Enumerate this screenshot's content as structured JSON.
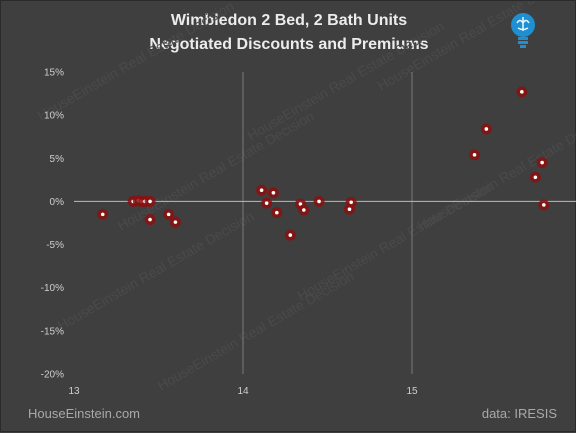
{
  "title_line1": "Wimbledon 2 Bed, 2 Bath Units",
  "title_line2": "Negotiated Discounts and Premiums",
  "footer_left": "HouseEinstein.com",
  "footer_right": "data:  IRESIS",
  "logo_icon": "lightbulb-brain-icon",
  "watermark_text": "HouseEinstein Real Estate Decision",
  "colors": {
    "background": "#3f3f3f",
    "point": "#8b1010",
    "point_center": "#ffffff",
    "gridline": "#7a7a7a",
    "zero_line": "#bdbdbd",
    "logo": "#1e8fd0"
  },
  "chart_data": {
    "type": "scatter",
    "title": "Wimbledon 2 Bed, 2 Bath Units Negotiated Discounts and Premiums",
    "xlim": [
      13,
      16
    ],
    "ylim": [
      -20,
      15
    ],
    "x_ticks": [
      13,
      14,
      15
    ],
    "y_ticks": [
      -20,
      -15,
      -10,
      -5,
      0,
      5,
      10,
      15
    ],
    "x_tick_labels": [
      "13",
      "14",
      "15"
    ],
    "y_tick_labels": [
      "-20%",
      "-15%",
      "-10%",
      "-5%",
      "0%",
      "5%",
      "10%",
      "15%"
    ],
    "grid": "vertical",
    "points": [
      {
        "x": 13.17,
        "y": -1.5
      },
      {
        "x": 13.35,
        "y": 0.0
      },
      {
        "x": 13.38,
        "y": 0.1
      },
      {
        "x": 13.4,
        "y": 0.0
      },
      {
        "x": 13.42,
        "y": 0.0
      },
      {
        "x": 13.45,
        "y": 0.0
      },
      {
        "x": 13.45,
        "y": -2.1
      },
      {
        "x": 13.56,
        "y": -1.5
      },
      {
        "x": 13.6,
        "y": -2.4
      },
      {
        "x": 14.11,
        "y": 1.3
      },
      {
        "x": 14.14,
        "y": -0.2
      },
      {
        "x": 14.18,
        "y": 1.0
      },
      {
        "x": 14.2,
        "y": -1.3
      },
      {
        "x": 14.28,
        "y": -3.9
      },
      {
        "x": 14.34,
        "y": -0.3
      },
      {
        "x": 14.36,
        "y": -1.0
      },
      {
        "x": 14.45,
        "y": 0.0
      },
      {
        "x": 14.63,
        "y": -0.9
      },
      {
        "x": 14.64,
        "y": -0.1
      },
      {
        "x": 15.37,
        "y": 5.4
      },
      {
        "x": 15.44,
        "y": 8.4
      },
      {
        "x": 15.65,
        "y": 12.7
      },
      {
        "x": 15.73,
        "y": 2.8
      },
      {
        "x": 15.77,
        "y": 4.5
      },
      {
        "x": 15.78,
        "y": -0.4
      }
    ]
  }
}
